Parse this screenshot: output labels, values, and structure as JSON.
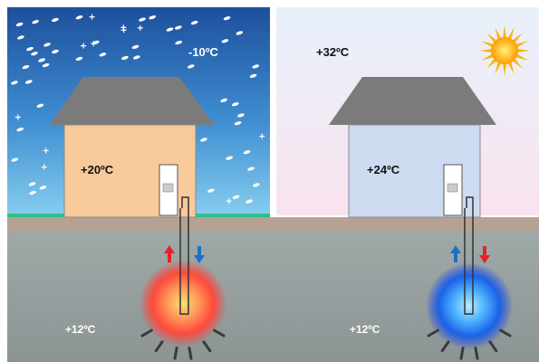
{
  "winter": {
    "outdoor_temp": "-10ºC",
    "indoor_temp": "+20ºC",
    "ground_temp": "+12ºC"
  },
  "summer": {
    "outdoor_temp": "+32ºC",
    "indoor_temp": "+24ºC",
    "ground_temp": "+12ºC"
  },
  "colors": {
    "winter_sky_top": "#1d4f9c",
    "winter_sky_bottom": "#7cc3ea",
    "summer_sky_top": "#eaf2fb",
    "summer_sky_bottom": "#f9e4ee",
    "ground_surface": "#b4a093",
    "grass": "#2fbf8a",
    "ground": "#9aa2a2",
    "roof": "#7b7b7b",
    "winter_wall": "#f8c99a",
    "summer_wall": "#cddbf1",
    "heat_glow": "#ff5a3c",
    "cool_glow": "#1e90ff",
    "arrow_warm": "#e8202a",
    "arrow_cool": "#1f6fc4",
    "sun": "#ffb300"
  }
}
